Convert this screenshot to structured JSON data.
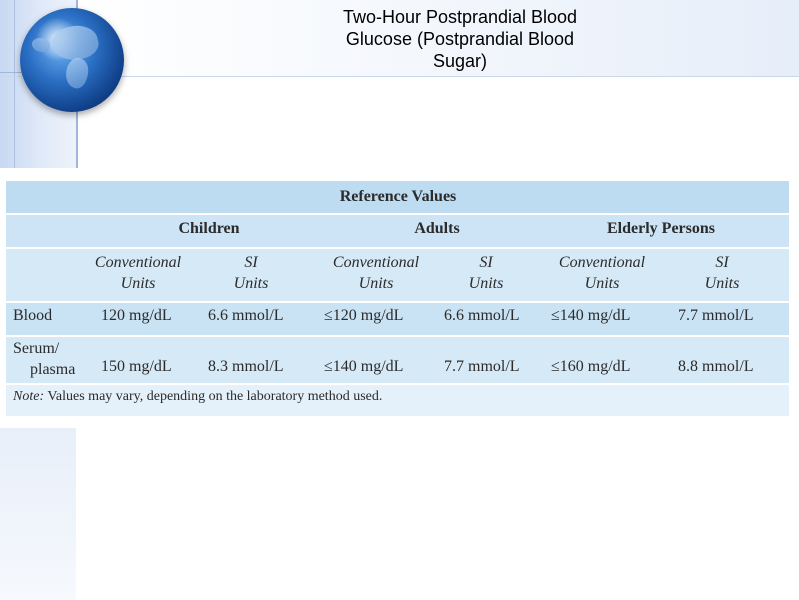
{
  "slide": {
    "title_lines": [
      "Two-Hour Postprandial Blood",
      "Glucose (Postprandial Blood",
      "Sugar)"
    ]
  },
  "table": {
    "caption": "Reference Values",
    "groups": [
      "Children",
      "Adults",
      "Elderly Persons"
    ],
    "unit_headers": [
      [
        "Conventional",
        "Units"
      ],
      [
        "SI",
        "Units"
      ],
      [
        "Conventional",
        "Units"
      ],
      [
        "SI",
        "Units"
      ],
      [
        "Conventional",
        "Units"
      ],
      [
        "SI",
        "Units"
      ]
    ],
    "rows": [
      {
        "label_lines": [
          "Blood"
        ],
        "values": [
          "120 mg/dL",
          "6.6 mmol/L",
          "≤120 mg/dL",
          "6.6 mmol/L",
          "≤140 mg/dL",
          "7.7 mmol/L"
        ]
      },
      {
        "label_lines": [
          "Serum/",
          "plasma"
        ],
        "values": [
          "150 mg/dL",
          "8.3 mmol/L",
          "≤140 mg/dL",
          "7.7 mmol/L",
          "≤160 mg/dL",
          "8.8 mmol/L"
        ]
      }
    ],
    "note_label": "Note:",
    "note_text": " Values may vary, depending on the laboratory method used."
  },
  "colors": {
    "table_header": "#bddcf2",
    "table_body": "#d6e9f7",
    "template_accent": "#9fb6dd"
  }
}
